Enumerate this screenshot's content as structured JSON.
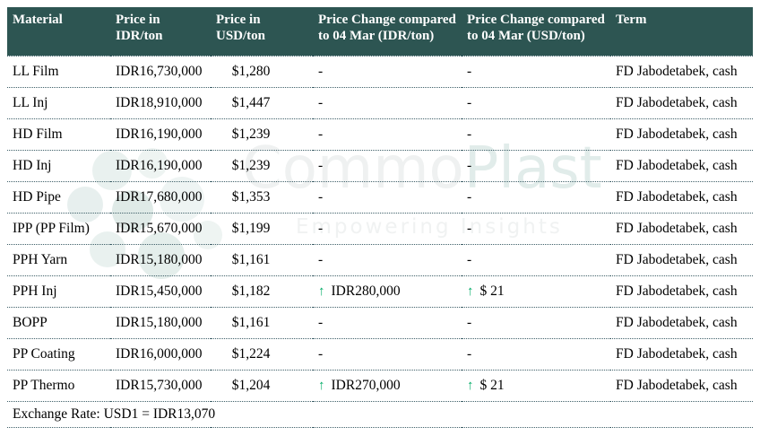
{
  "colors": {
    "header_bg": "#2D5552",
    "header_text": "#ffffff",
    "up_green": "#00AB66",
    "dotted_border": "#3f6069",
    "watermark_gray": "#eff1f1",
    "watermark_teal": "#e1ecea"
  },
  "icons": {
    "up_arrow": "↑"
  },
  "watermark": {
    "brand_commo": "Commo",
    "brand_plast": "Plast",
    "tagline": "Empowering Insights"
  },
  "table": {
    "columns": [
      {
        "key": "material",
        "label": "Material"
      },
      {
        "key": "price-idr",
        "label": "Price in IDR/ton"
      },
      {
        "key": "price-usd",
        "label": "Price in USD/ton"
      },
      {
        "key": "change-idr",
        "label": "Price Change compared to 04 Mar (IDR/ton)"
      },
      {
        "key": "change-usd",
        "label": "Price Change compared to 04 Mar (USD/ton)"
      },
      {
        "key": "term",
        "label": "Term"
      }
    ],
    "rows": [
      {
        "material": "LL Film",
        "price_idr": "IDR16,730,000",
        "price_usd": "$1,280",
        "change_idr": {
          "up": false,
          "text": "-"
        },
        "change_usd": {
          "up": false,
          "text": "-"
        },
        "term": "FD Jabodetabek, cash"
      },
      {
        "material": "LL Inj",
        "price_idr": "IDR18,910,000",
        "price_usd": "$1,447",
        "change_idr": {
          "up": false,
          "text": "-"
        },
        "change_usd": {
          "up": false,
          "text": "-"
        },
        "term": "FD Jabodetabek, cash"
      },
      {
        "material": "HD Film",
        "price_idr": "IDR16,190,000",
        "price_usd": "$1,239",
        "change_idr": {
          "up": false,
          "text": "-"
        },
        "change_usd": {
          "up": false,
          "text": "-"
        },
        "term": "FD Jabodetabek, cash"
      },
      {
        "material": "HD Inj",
        "price_idr": "IDR16,190,000",
        "price_usd": "$1,239",
        "change_idr": {
          "up": false,
          "text": "-"
        },
        "change_usd": {
          "up": false,
          "text": "-"
        },
        "term": "FD Jabodetabek, cash"
      },
      {
        "material": "HD Pipe",
        "price_idr": "IDR17,680,000",
        "price_usd": "$1,353",
        "change_idr": {
          "up": false,
          "text": "-"
        },
        "change_usd": {
          "up": false,
          "text": "-"
        },
        "term": "FD Jabodetabek, cash"
      },
      {
        "material": "IPP (PP Film)",
        "price_idr": "IDR15,670,000",
        "price_usd": "$1,199",
        "change_idr": {
          "up": false,
          "text": "-"
        },
        "change_usd": {
          "up": false,
          "text": "-"
        },
        "term": "FD Jabodetabek, cash"
      },
      {
        "material": "PPH Yarn",
        "price_idr": "IDR15,180,000",
        "price_usd": "$1,161",
        "change_idr": {
          "up": false,
          "text": "-"
        },
        "change_usd": {
          "up": false,
          "text": "-"
        },
        "term": "FD Jabodetabek, cash"
      },
      {
        "material": "PPH Inj",
        "price_idr": "IDR15,450,000",
        "price_usd": "$1,182",
        "change_idr": {
          "up": true,
          "text": "IDR280,000"
        },
        "change_usd": {
          "up": true,
          "text": "$ 21"
        },
        "term": "FD Jabodetabek, cash"
      },
      {
        "material": "BOPP",
        "price_idr": "IDR15,180,000",
        "price_usd": "$1,161",
        "change_idr": {
          "up": false,
          "text": "-"
        },
        "change_usd": {
          "up": false,
          "text": "-"
        },
        "term": "FD Jabodetabek, cash"
      },
      {
        "material": "PP Coating",
        "price_idr": "IDR16,000,000",
        "price_usd": "$1,224",
        "change_idr": {
          "up": false,
          "text": "-"
        },
        "change_usd": {
          "up": false,
          "text": "-"
        },
        "term": "FD Jabodetabek, cash"
      },
      {
        "material": "PP Thermo",
        "price_idr": "IDR15,730,000",
        "price_usd": "$1,204",
        "change_idr": {
          "up": true,
          "text": "IDR270,000"
        },
        "change_usd": {
          "up": true,
          "text": "$ 21"
        },
        "term": "FD Jabodetabek, cash"
      }
    ],
    "footer": "Exchange Rate: USD1 = IDR13,070"
  }
}
